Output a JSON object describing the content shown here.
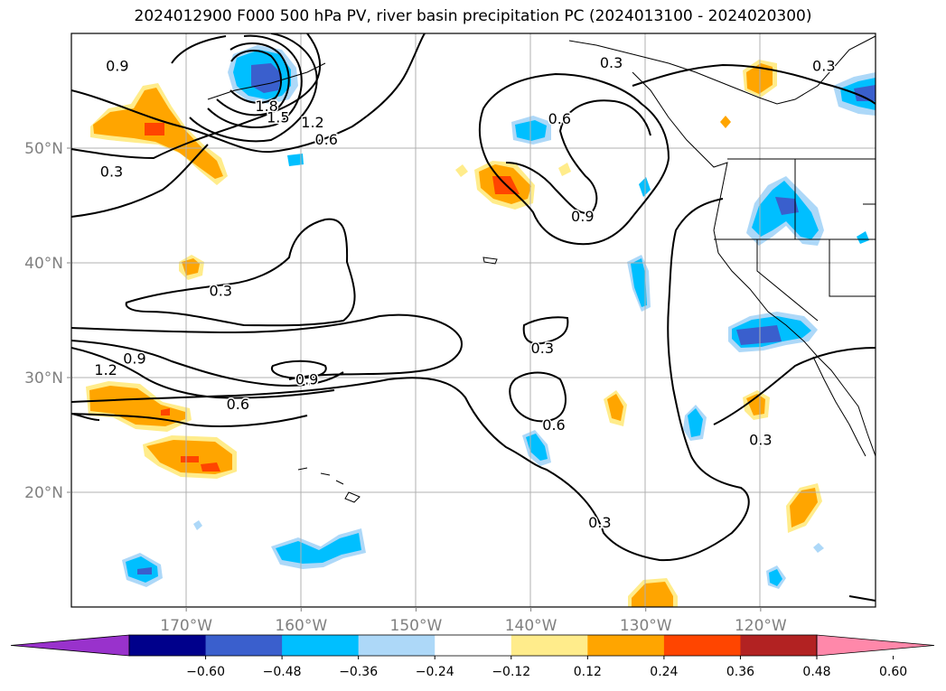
{
  "chart_data": {
    "type": "map",
    "title": "2024012900 F000 500 hPa PV, river basin precipitation PC (2024013100 - 2024020300)",
    "lon_range": [
      -180,
      -110
    ],
    "lat_range": [
      10,
      60
    ],
    "x_ticks": [
      -170,
      -160,
      -150,
      -140,
      -130,
      -120
    ],
    "x_tick_labels": [
      "170°W",
      "160°W",
      "150°W",
      "140°W",
      "130°W",
      "120°W"
    ],
    "y_ticks": [
      20,
      30,
      40,
      50
    ],
    "y_tick_labels": [
      "20°N",
      "30°N",
      "40°N",
      "50°N"
    ],
    "grid": true,
    "contour_labels": [
      {
        "text": "0.9",
        "lon": -176.0,
        "lat": 57.2
      },
      {
        "text": "1.8",
        "lon": -163.0,
        "lat": 53.7
      },
      {
        "text": "1.5",
        "lon": -162.0,
        "lat": 52.7
      },
      {
        "text": "1.2",
        "lon": -159.0,
        "lat": 52.3
      },
      {
        "text": "0.6",
        "lon": -157.8,
        "lat": 50.8
      },
      {
        "text": "0.3",
        "lon": -176.5,
        "lat": 48.0
      },
      {
        "text": "0.3",
        "lon": -133.0,
        "lat": 57.5
      },
      {
        "text": "0.3",
        "lon": -114.5,
        "lat": 57.2
      },
      {
        "text": "0.6",
        "lon": -137.5,
        "lat": 52.6
      },
      {
        "text": "0.9",
        "lon": -135.5,
        "lat": 44.1
      },
      {
        "text": "0.3",
        "lon": -167.0,
        "lat": 37.6
      },
      {
        "text": "0.9",
        "lon": -174.5,
        "lat": 31.7
      },
      {
        "text": "1.2",
        "lon": -177.0,
        "lat": 30.7
      },
      {
        "text": "0.9",
        "lon": -159.5,
        "lat": 29.9
      },
      {
        "text": "0.6",
        "lon": -165.5,
        "lat": 27.7
      },
      {
        "text": "0.3",
        "lon": -139.0,
        "lat": 32.6
      },
      {
        "text": "0.6",
        "lon": -138.0,
        "lat": 25.9
      },
      {
        "text": "0.3",
        "lon": -120.0,
        "lat": 24.6
      },
      {
        "text": "0.3",
        "lon": -134.0,
        "lat": 17.4
      }
    ],
    "shading_colors": [
      "#9932cc",
      "#00008b",
      "#3a5fcd",
      "#00bfff",
      "#add8f8",
      "#ffffff",
      "#ffec8b",
      "#ffa500",
      "#ff4500",
      "#b22222",
      "#ff88aa"
    ],
    "colorbar": {
      "levels": [
        -0.6,
        -0.48,
        -0.36,
        -0.24,
        -0.12,
        0.12,
        0.24,
        0.36,
        0.48,
        0.6
      ],
      "labels": [
        "−0.60",
        "−0.48",
        "−0.36",
        "−0.24",
        "−0.12",
        "0.12",
        "0.24",
        "0.36",
        "0.48",
        "0.60"
      ],
      "colors": [
        "#9932cc",
        "#00008b",
        "#3a5fcd",
        "#00bfff",
        "#add8f8",
        "#ffffff",
        "#ffec8b",
        "#ffa500",
        "#ff4500",
        "#b22222",
        "#ff88aa"
      ]
    }
  }
}
